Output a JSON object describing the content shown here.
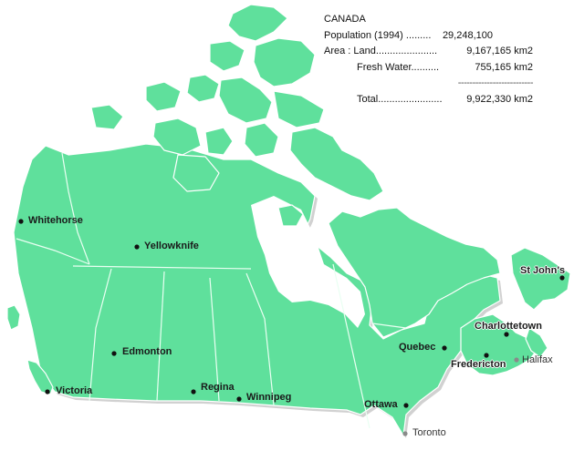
{
  "info": {
    "title": "CANADA",
    "population_label": "Population (1994) .........",
    "population_value": "29,248,100",
    "area_land_label": "Area : Land......................",
    "area_land_value": "9,167,165 km2",
    "fresh_water_label": "Fresh Water..........",
    "fresh_water_value": "755,165 km2",
    "separator": "--------------------------",
    "total_label": "Total.......................",
    "total_value": "9,922,330 km2"
  },
  "cities": [
    {
      "name": "Whitehorse",
      "dot": "black"
    },
    {
      "name": "Yellowknife",
      "dot": "black"
    },
    {
      "name": "St John's",
      "dot": "black"
    },
    {
      "name": "Charlottetown",
      "dot": "black"
    },
    {
      "name": "Edmonton",
      "dot": "black"
    },
    {
      "name": "Quebec",
      "dot": "black"
    },
    {
      "name": "Fredericton",
      "dot": "black"
    },
    {
      "name": "Halifax",
      "dot": "grey"
    },
    {
      "name": "Regina",
      "dot": "black"
    },
    {
      "name": "Winnipeg",
      "dot": "black"
    },
    {
      "name": "Victoria",
      "dot": "black"
    },
    {
      "name": "Ottawa",
      "dot": "black"
    },
    {
      "name": "Toronto",
      "dot": "grey"
    }
  ],
  "colors": {
    "land": "#5fe09c",
    "borders": "#e9fff2",
    "water": "#ffffff"
  }
}
